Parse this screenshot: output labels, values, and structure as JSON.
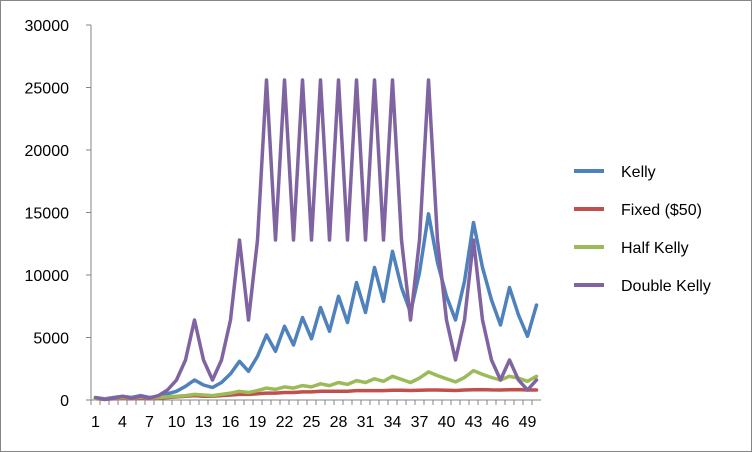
{
  "colors": {
    "kelly": "#4F81BD",
    "fixed": "#C0504D",
    "half_kelly": "#9BBB59",
    "double_kelly": "#8064A2",
    "axis": "#868686"
  },
  "chart_data": {
    "type": "line",
    "title": "",
    "xlabel": "",
    "ylabel": "",
    "ylim": [
      0,
      30000
    ],
    "yticks": [
      0,
      5000,
      10000,
      15000,
      20000,
      25000,
      30000
    ],
    "x": [
      1,
      2,
      3,
      4,
      5,
      6,
      7,
      8,
      9,
      10,
      11,
      12,
      13,
      14,
      15,
      16,
      17,
      18,
      19,
      20,
      21,
      22,
      23,
      24,
      25,
      26,
      27,
      28,
      29,
      30,
      31,
      32,
      33,
      34,
      35,
      36,
      37,
      38,
      39,
      40,
      41,
      42,
      43,
      44,
      45,
      46,
      47,
      48,
      49,
      50
    ],
    "xtick_labels": [
      "1",
      "4",
      "7",
      "10",
      "13",
      "16",
      "19",
      "22",
      "25",
      "28",
      "31",
      "34",
      "37",
      "40",
      "43",
      "46",
      "49"
    ],
    "xtick_positions": [
      1,
      4,
      7,
      10,
      13,
      16,
      19,
      22,
      25,
      28,
      31,
      34,
      37,
      40,
      43,
      46,
      49
    ],
    "legend_position": "right",
    "grid": false,
    "series": [
      {
        "name": "Kelly",
        "color_key": "kelly",
        "values": [
          180,
          100,
          200,
          300,
          200,
          350,
          200,
          300,
          500,
          700,
          1100,
          1600,
          1200,
          1000,
          1400,
          2100,
          3100,
          2300,
          3500,
          5200,
          3900,
          5900,
          4400,
          6600,
          4900,
          7400,
          5500,
          8300,
          6200,
          9400,
          7000,
          10600,
          7900,
          11900,
          9000,
          7000,
          10200,
          14900,
          11000,
          8300,
          6400,
          9500,
          14200,
          10600,
          8000,
          6000,
          9000,
          6800,
          5100,
          7600
        ]
      },
      {
        "name": "Fixed ($50)",
        "color_key": "fixed",
        "values": [
          100,
          50,
          100,
          150,
          100,
          150,
          100,
          150,
          200,
          250,
          300,
          350,
          300,
          300,
          350,
          400,
          450,
          450,
          500,
          550,
          550,
          600,
          600,
          650,
          650,
          700,
          700,
          700,
          700,
          750,
          750,
          750,
          750,
          780,
          780,
          760,
          780,
          800,
          800,
          780,
          760,
          800,
          820,
          830,
          810,
          800,
          820,
          830,
          800,
          800
        ]
      },
      {
        "name": "Half Kelly",
        "color_key": "half_kelly",
        "values": [
          100,
          80,
          150,
          200,
          150,
          220,
          150,
          200,
          250,
          300,
          350,
          450,
          400,
          350,
          450,
          550,
          700,
          600,
          750,
          950,
          850,
          1050,
          950,
          1150,
          1050,
          1300,
          1150,
          1400,
          1250,
          1550,
          1400,
          1700,
          1500,
          1900,
          1650,
          1400,
          1750,
          2250,
          1950,
          1700,
          1450,
          1800,
          2350,
          2050,
          1800,
          1600,
          1900,
          1750,
          1500,
          1900
        ]
      },
      {
        "name": " Double Kelly",
        "color_key": "double_kelly",
        "values": [
          200,
          50,
          150,
          300,
          150,
          300,
          150,
          350,
          800,
          1600,
          3200,
          6400,
          3200,
          1600,
          3200,
          6400,
          12800,
          6400,
          12800,
          25600,
          12800,
          25600,
          12800,
          25600,
          12800,
          25600,
          12800,
          25600,
          12800,
          25600,
          12800,
          25600,
          12800,
          25600,
          12800,
          6400,
          12800,
          25600,
          12800,
          6400,
          3200,
          6400,
          12800,
          6400,
          3200,
          1600,
          3200,
          1600,
          800,
          1600
        ]
      }
    ]
  }
}
